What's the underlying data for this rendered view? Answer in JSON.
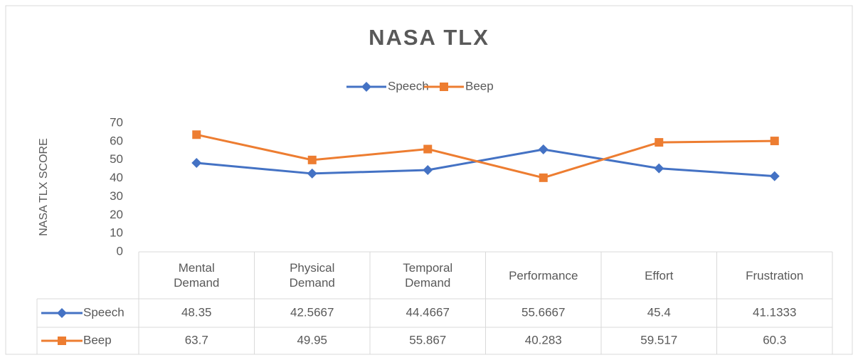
{
  "chart_data": {
    "type": "line",
    "title": "NASA TLX",
    "y_label": "NASA TLX SCORE",
    "categories": [
      "Mental Demand",
      "Physical Demand",
      "Temporal Demand",
      "Performance",
      "Effort",
      "Frustration"
    ],
    "series": [
      {
        "name": "Speech",
        "color": "#4472c4",
        "marker": "diamond",
        "values": [
          48.35,
          42.5667,
          44.4667,
          55.6667,
          45.4,
          41.1333
        ]
      },
      {
        "name": "Beep",
        "color": "#ed7d31",
        "marker": "square",
        "values": [
          63.7,
          49.95,
          55.867,
          40.283,
          59.517,
          60.3
        ]
      }
    ],
    "ylim": [
      0,
      70
    ],
    "yticks": [
      0,
      10,
      20,
      30,
      40,
      50,
      60,
      70
    ],
    "legend": "top",
    "data_table": true
  }
}
